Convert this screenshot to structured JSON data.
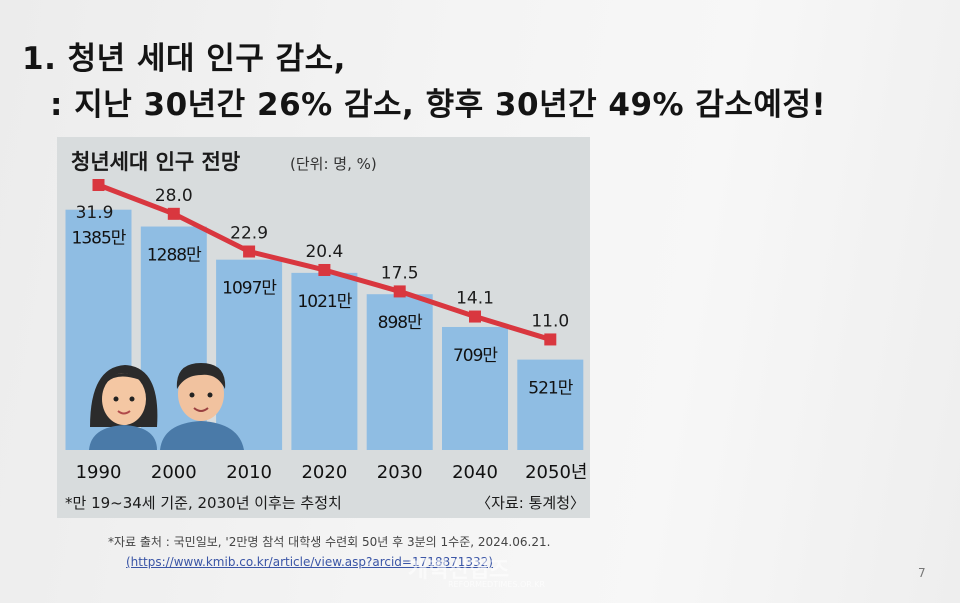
{
  "slide": {
    "title_line1": "1. 청년 세대 인구 감소,",
    "title_line2": ": 지난 30년간 26% 감소, 향후 30년간 49% 감소예정!",
    "source_line": "*자료 출처 : 국민일보, '2만명 참석 대학생 수련회 50년 후 3분의 1수준, 2024.06.21.",
    "source_url": "(https://www.kmib.co.kr/article/view.asp?arcid=1718871332)",
    "page_number": "7",
    "watermark": "개혁신협즈",
    "watermark_sub": "REFORMEDTIMES.OR.KR"
  },
  "colors": {
    "bar": "#8fbde3",
    "line": "#d9373f",
    "marker": "#d9373f",
    "panel": "#d8dcdd",
    "title": "#141414"
  },
  "chart_data": {
    "type": "bar",
    "title": "청년세대 인구 전망",
    "unit_note": "(단위: 명, %)",
    "categories": [
      "1990",
      "2000",
      "2010",
      "2020",
      "2030",
      "2040",
      "2050년"
    ],
    "series": [
      {
        "type": "bar",
        "values": [
          1385,
          1288,
          1097,
          1021,
          898,
          709,
          521
        ],
        "labels": [
          "1385만",
          "1288만",
          "1097만",
          "1021만",
          "898만",
          "709만",
          "521만"
        ]
      },
      {
        "type": "line",
        "values": [
          31.9,
          28.0,
          22.9,
          20.4,
          17.5,
          14.1,
          11.0
        ],
        "labels": [
          "31.9",
          "28.0",
          "22.9",
          "20.4",
          "17.5",
          "14.1",
          "11.0"
        ]
      }
    ],
    "footnote": "*만 19~34세 기준, 2030년 이후는 추정치",
    "source": "〈자료: 통계청〉",
    "grid": false,
    "legend": "none"
  }
}
